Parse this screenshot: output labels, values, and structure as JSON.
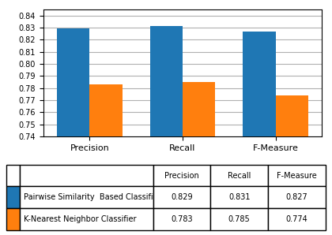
{
  "chart_data": {
    "type": "bar",
    "categories": [
      "Precision",
      "Recall",
      "F-Measure"
    ],
    "series": [
      {
        "name": "Pairwise Similarity  Based Classifier",
        "values": [
          0.829,
          0.831,
          0.827
        ]
      },
      {
        "name": "K-Nearest Neighbor Classifier",
        "values": [
          0.783,
          0.785,
          0.774
        ]
      }
    ],
    "ylim": [
      0.74,
      0.845
    ],
    "yticks": [
      0.74,
      0.75,
      0.76,
      0.77,
      0.78,
      0.79,
      {
        "value": 0.8,
        "label": "0.80"
      },
      0.81,
      0.82,
      0.83,
      0.84
    ],
    "grid": true
  }
}
